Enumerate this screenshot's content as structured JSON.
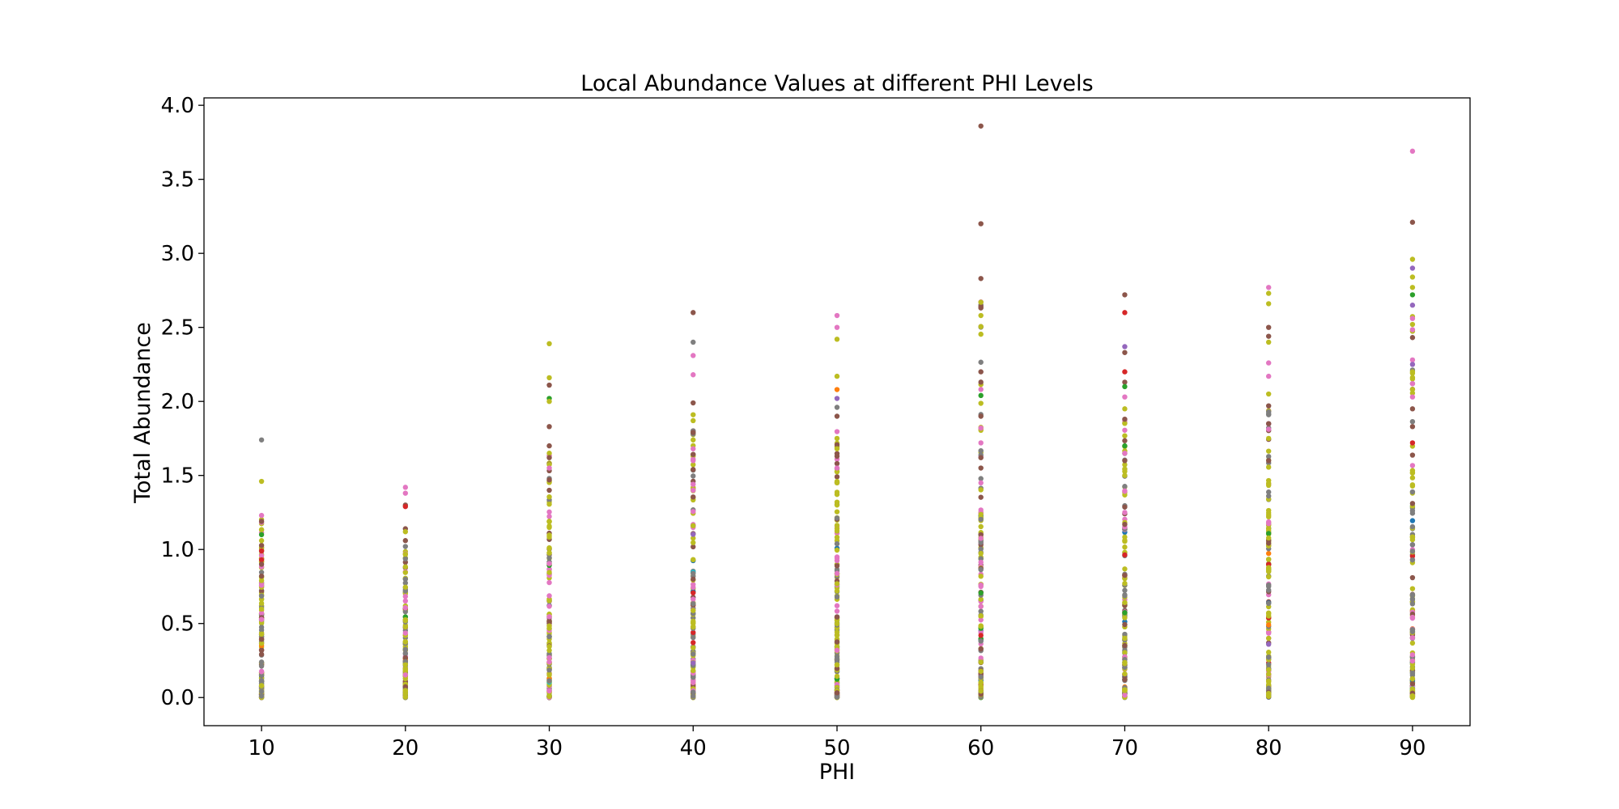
{
  "chart_data": {
    "type": "scatter",
    "title": "Local Abundance Values at different PHI Levels",
    "xlabel": "PHI",
    "ylabel": "Total Abundance",
    "x_ticks": [
      10,
      20,
      30,
      40,
      50,
      60,
      70,
      80,
      90
    ],
    "y_ticks": [
      "0.0",
      "0.5",
      "1.0",
      "1.5",
      "2.0",
      "2.5",
      "3.0",
      "3.5",
      "4.0"
    ],
    "xlim": [
      6,
      94
    ],
    "ylim": [
      -0.19,
      4.05
    ],
    "grid": false,
    "legend": "none",
    "colors": [
      "#1f77b4",
      "#ff7f0e",
      "#2ca02c",
      "#d62728",
      "#9467bd",
      "#8c564b",
      "#e377c2",
      "#7f7f7f",
      "#bcbd22",
      "#17becf"
    ],
    "groups": [
      {
        "x": 10,
        "max": 1.74,
        "notable": [
          {
            "y": 1.74,
            "c": "#7f7f7f"
          },
          {
            "y": 1.46,
            "c": "#bcbd22"
          },
          {
            "y": 1.23,
            "c": "#e377c2"
          },
          {
            "y": 1.19,
            "c": "#8c564b"
          },
          {
            "y": 1.1,
            "c": "#2ca02c"
          },
          {
            "y": 1.06,
            "c": "#bcbd22"
          },
          {
            "y": 0.99,
            "c": "#d62728"
          },
          {
            "y": 0.93,
            "c": "#d62728"
          },
          {
            "y": 0.9,
            "c": "#8c564b"
          },
          {
            "y": 0.82,
            "c": "#8c564b"
          }
        ]
      },
      {
        "x": 20,
        "max": 1.42,
        "notable": [
          {
            "y": 1.42,
            "c": "#e377c2"
          },
          {
            "y": 1.38,
            "c": "#e377c2"
          },
          {
            "y": 1.3,
            "c": "#8c564b"
          },
          {
            "y": 1.29,
            "c": "#d62728"
          },
          {
            "y": 1.14,
            "c": "#8c564b"
          },
          {
            "y": 1.12,
            "c": "#bcbd22"
          },
          {
            "y": 1.06,
            "c": "#8c564b"
          },
          {
            "y": 1.02,
            "c": "#7f7f7f"
          }
        ]
      },
      {
        "x": 30,
        "max": 2.39,
        "notable": [
          {
            "y": 2.39,
            "c": "#bcbd22"
          },
          {
            "y": 2.16,
            "c": "#bcbd22"
          },
          {
            "y": 2.11,
            "c": "#8c564b"
          },
          {
            "y": 2.02,
            "c": "#2ca02c"
          },
          {
            "y": 2.0,
            "c": "#bcbd22"
          },
          {
            "y": 1.83,
            "c": "#8c564b"
          },
          {
            "y": 1.7,
            "c": "#8c564b"
          },
          {
            "y": 1.65,
            "c": "#bcbd22"
          },
          {
            "y": 1.62,
            "c": "#8c564b"
          },
          {
            "y": 1.55,
            "c": "#e377c2"
          },
          {
            "y": 1.47,
            "c": "#8c564b"
          }
        ]
      },
      {
        "x": 40,
        "max": 2.6,
        "notable": [
          {
            "y": 2.6,
            "c": "#8c564b"
          },
          {
            "y": 2.4,
            "c": "#7f7f7f"
          },
          {
            "y": 2.31,
            "c": "#e377c2"
          },
          {
            "y": 2.18,
            "c": "#e377c2"
          },
          {
            "y": 1.99,
            "c": "#8c564b"
          },
          {
            "y": 1.91,
            "c": "#bcbd22"
          },
          {
            "y": 1.87,
            "c": "#bcbd22"
          },
          {
            "y": 1.79,
            "c": "#8c564b"
          },
          {
            "y": 1.74,
            "c": "#bcbd22"
          },
          {
            "y": 1.68,
            "c": "#e377c2"
          },
          {
            "y": 1.6,
            "c": "#e377c2"
          },
          {
            "y": 1.54,
            "c": "#8c564b"
          },
          {
            "y": 1.44,
            "c": "#e377c2"
          },
          {
            "y": 1.4,
            "c": "#e377c2"
          }
        ]
      },
      {
        "x": 50,
        "max": 2.58,
        "notable": [
          {
            "y": 2.58,
            "c": "#e377c2"
          },
          {
            "y": 2.5,
            "c": "#e377c2"
          },
          {
            "y": 2.42,
            "c": "#bcbd22"
          },
          {
            "y": 2.17,
            "c": "#bcbd22"
          },
          {
            "y": 2.08,
            "c": "#ff7f0e"
          },
          {
            "y": 2.02,
            "c": "#9467bd"
          },
          {
            "y": 1.96,
            "c": "#7f7f7f"
          },
          {
            "y": 1.9,
            "c": "#8c564b"
          },
          {
            "y": 1.75,
            "c": "#bcbd22"
          },
          {
            "y": 1.68,
            "c": "#bcbd22"
          },
          {
            "y": 1.58,
            "c": "#8c564b"
          },
          {
            "y": 1.55,
            "c": "#e377c2"
          },
          {
            "y": 1.45,
            "c": "#bcbd22"
          }
        ]
      },
      {
        "x": 60,
        "max": 3.86,
        "notable": [
          {
            "y": 3.86,
            "c": "#8c564b"
          },
          {
            "y": 3.2,
            "c": "#8c564b"
          },
          {
            "y": 2.83,
            "c": "#8c564b"
          },
          {
            "y": 2.67,
            "c": "#bcbd22"
          },
          {
            "y": 2.58,
            "c": "#bcbd22"
          },
          {
            "y": 2.2,
            "c": "#8c564b"
          },
          {
            "y": 2.04,
            "c": "#2ca02c"
          },
          {
            "y": 1.9,
            "c": "#8c564b"
          },
          {
            "y": 1.82,
            "c": "#e377c2"
          },
          {
            "y": 1.72,
            "c": "#e377c2"
          },
          {
            "y": 1.62,
            "c": "#8c564b"
          },
          {
            "y": 1.55,
            "c": "#8c564b"
          },
          {
            "y": 1.45,
            "c": "#e377c2"
          }
        ]
      },
      {
        "x": 70,
        "max": 2.72,
        "notable": [
          {
            "y": 2.72,
            "c": "#8c564b"
          },
          {
            "y": 2.6,
            "c": "#d62728"
          },
          {
            "y": 2.37,
            "c": "#9467bd"
          },
          {
            "y": 2.33,
            "c": "#8c564b"
          },
          {
            "y": 2.2,
            "c": "#d62728"
          },
          {
            "y": 2.13,
            "c": "#8c564b"
          },
          {
            "y": 2.1,
            "c": "#2ca02c"
          },
          {
            "y": 2.03,
            "c": "#e377c2"
          },
          {
            "y": 1.95,
            "c": "#bcbd22"
          },
          {
            "y": 1.88,
            "c": "#8c564b"
          },
          {
            "y": 1.7,
            "c": "#2ca02c"
          },
          {
            "y": 1.65,
            "c": "#e377c2"
          },
          {
            "y": 1.6,
            "c": "#8c564b"
          },
          {
            "y": 1.5,
            "c": "#bcbd22"
          }
        ]
      },
      {
        "x": 80,
        "max": 2.77,
        "notable": [
          {
            "y": 2.77,
            "c": "#e377c2"
          },
          {
            "y": 2.73,
            "c": "#bcbd22"
          },
          {
            "y": 2.66,
            "c": "#bcbd22"
          },
          {
            "y": 2.5,
            "c": "#8c564b"
          },
          {
            "y": 2.44,
            "c": "#8c564b"
          },
          {
            "y": 2.4,
            "c": "#bcbd22"
          },
          {
            "y": 2.26,
            "c": "#e377c2"
          },
          {
            "y": 2.17,
            "c": "#e377c2"
          },
          {
            "y": 2.05,
            "c": "#bcbd22"
          },
          {
            "y": 1.97,
            "c": "#8c564b"
          },
          {
            "y": 1.91,
            "c": "#7f7f7f"
          },
          {
            "y": 1.85,
            "c": "#8c564b"
          },
          {
            "y": 1.75,
            "c": "#bcbd22"
          },
          {
            "y": 1.6,
            "c": "#8c564b"
          }
        ]
      },
      {
        "x": 90,
        "max": 3.69,
        "notable": [
          {
            "y": 3.69,
            "c": "#e377c2"
          },
          {
            "y": 3.21,
            "c": "#8c564b"
          },
          {
            "y": 2.96,
            "c": "#bcbd22"
          },
          {
            "y": 2.9,
            "c": "#9467bd"
          },
          {
            "y": 2.84,
            "c": "#bcbd22"
          },
          {
            "y": 2.77,
            "c": "#bcbd22"
          },
          {
            "y": 2.72,
            "c": "#2ca02c"
          },
          {
            "y": 2.65,
            "c": "#9467bd"
          },
          {
            "y": 2.56,
            "c": "#e377c2"
          },
          {
            "y": 2.52,
            "c": "#bcbd22"
          },
          {
            "y": 2.28,
            "c": "#e377c2"
          },
          {
            "y": 2.25,
            "c": "#9467bd"
          },
          {
            "y": 2.2,
            "c": "#bcbd22"
          },
          {
            "y": 2.12,
            "c": "#e377c2"
          },
          {
            "y": 2.03,
            "c": "#e377c2"
          },
          {
            "y": 1.95,
            "c": "#8c564b"
          },
          {
            "y": 1.83,
            "c": "#8c564b"
          },
          {
            "y": 1.72,
            "c": "#d62728"
          }
        ]
      }
    ]
  }
}
